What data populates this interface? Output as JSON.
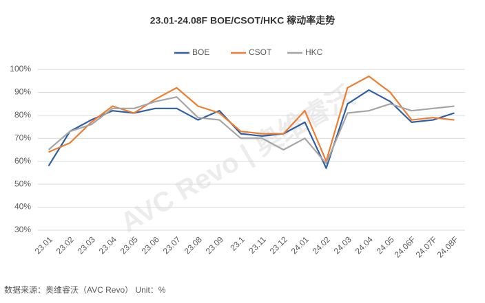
{
  "chart_data": {
    "type": "line",
    "title": "23.01-24.08F BOE/CSOT/HKC 稼动率走势",
    "categories": [
      "23.01",
      "23.02",
      "23.03",
      "23.04",
      "23.05",
      "23.06",
      "23.07",
      "23.08",
      "23.09",
      "23.1",
      "23.11",
      "23.12",
      "24.01",
      "24.02",
      "24.03",
      "24.04",
      "24.05",
      "24.06F",
      "24.07F",
      "24.08F"
    ],
    "series": [
      {
        "name": "BOE",
        "color": "#2e5fa3",
        "values": [
          58,
          73,
          78,
          82,
          81,
          83,
          83,
          78,
          82,
          72,
          71,
          72,
          77,
          57,
          85,
          91,
          86,
          77,
          78,
          81
        ]
      },
      {
        "name": "CSOT",
        "color": "#ed7d31",
        "values": [
          64,
          68,
          77,
          84,
          81,
          87,
          92,
          84,
          81,
          73,
          72,
          72,
          82,
          60,
          92,
          97,
          90,
          78,
          79,
          78
        ]
      },
      {
        "name": "HKC",
        "color": "#a5a5a5",
        "values": [
          65,
          73,
          76,
          83,
          83,
          86,
          88,
          79,
          78,
          70,
          70,
          65,
          70,
          59,
          81,
          82,
          85,
          82,
          83,
          84
        ]
      }
    ],
    "ylim": [
      30,
      100
    ],
    "yticks": [
      {
        "value": 30,
        "label": "30%"
      },
      {
        "value": 40,
        "label": "40%"
      },
      {
        "value": 50,
        "label": "50%"
      },
      {
        "value": 60,
        "label": "60%"
      },
      {
        "value": 70,
        "label": "70%"
      },
      {
        "value": 80,
        "label": "80%"
      },
      {
        "value": 90,
        "label": "90%"
      },
      {
        "value": 100,
        "label": "100%"
      }
    ],
    "grid": true,
    "legend": "top",
    "watermark": "AVC Revo | 奥维睿沃",
    "source": "数据来源：奥维睿沃（AVC Revo） Unit：%"
  }
}
